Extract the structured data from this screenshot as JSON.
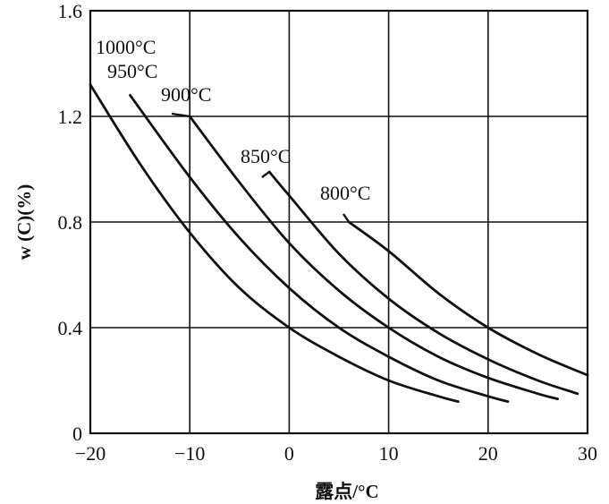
{
  "chart_data": {
    "type": "line",
    "xlabel": "露点/°C",
    "ylabel": "w (C)(%)",
    "xlim": [
      -20,
      30
    ],
    "ylim": [
      0,
      1.6
    ],
    "x_ticks": [
      -20,
      -10,
      0,
      10,
      20,
      30
    ],
    "x_tick_labels": [
      "−20",
      "−10",
      "0",
      "10",
      "20",
      "30"
    ],
    "y_ticks": [
      0,
      0.4,
      0.8,
      1.2,
      1.6
    ],
    "y_tick_labels": [
      "0",
      "0.4",
      "0.8",
      "1.2",
      "1.6"
    ],
    "grid": true,
    "series": [
      {
        "name": "1000°C",
        "points": [
          [
            -20,
            1.32
          ],
          [
            -15,
            1.02
          ],
          [
            -10,
            0.76
          ],
          [
            -5,
            0.55
          ],
          [
            0,
            0.4
          ],
          [
            5,
            0.29
          ],
          [
            10,
            0.2
          ],
          [
            15,
            0.14
          ],
          [
            17,
            0.12
          ]
        ]
      },
      {
        "name": "950°C",
        "points": [
          [
            -16,
            1.28
          ],
          [
            -10,
            0.97
          ],
          [
            -5,
            0.74
          ],
          [
            0,
            0.55
          ],
          [
            5,
            0.4
          ],
          [
            10,
            0.29
          ],
          [
            15,
            0.2
          ],
          [
            20,
            0.14
          ],
          [
            22,
            0.12
          ]
        ]
      },
      {
        "name": "900°C",
        "points": [
          [
            -10,
            1.2
          ],
          [
            -5,
            0.95
          ],
          [
            0,
            0.72
          ],
          [
            5,
            0.54
          ],
          [
            10,
            0.4
          ],
          [
            15,
            0.29
          ],
          [
            20,
            0.21
          ],
          [
            25,
            0.15
          ],
          [
            27,
            0.13
          ]
        ]
      },
      {
        "name": "850°C",
        "points": [
          [
            -2,
            0.99
          ],
          [
            0,
            0.9
          ],
          [
            5,
            0.68
          ],
          [
            10,
            0.51
          ],
          [
            15,
            0.38
          ],
          [
            20,
            0.28
          ],
          [
            25,
            0.2
          ],
          [
            29,
            0.15
          ]
        ]
      },
      {
        "name": "800°C",
        "points": [
          [
            6,
            0.8
          ],
          [
            10,
            0.69
          ],
          [
            15,
            0.53
          ],
          [
            20,
            0.4
          ],
          [
            25,
            0.3
          ],
          [
            30,
            0.22
          ]
        ]
      }
    ]
  }
}
